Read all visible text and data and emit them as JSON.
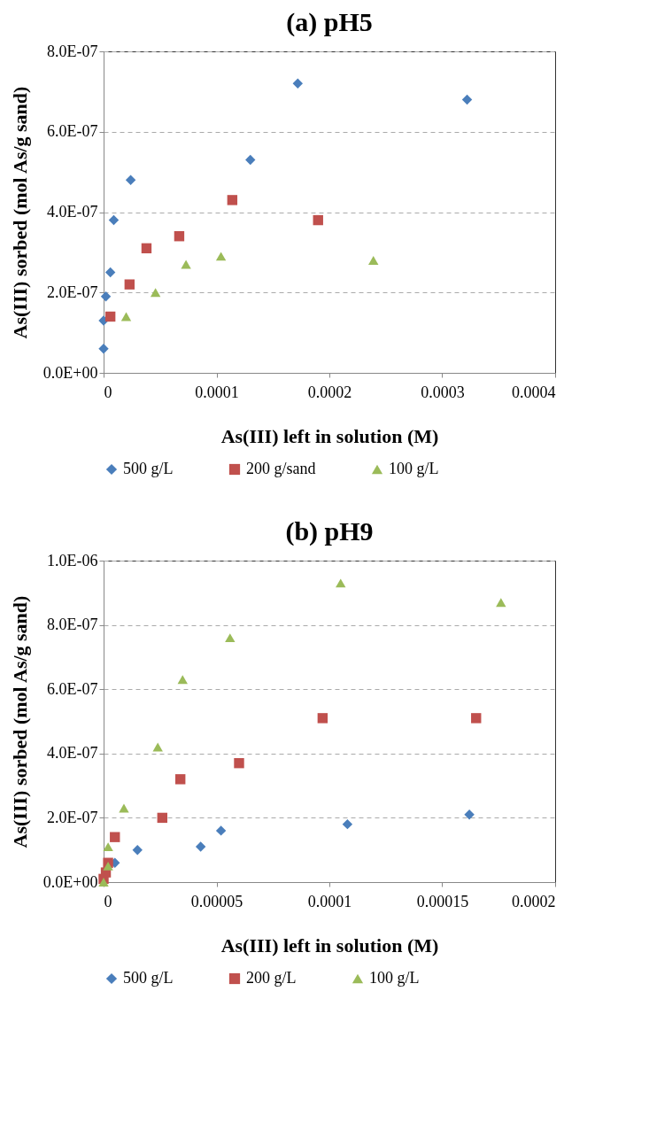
{
  "chart_data": [
    {
      "type": "scatter",
      "title": "(a) pH5",
      "xlabel": "As(III) left in solution (M)",
      "ylabel": "As(III) sorbed (mol As/g sand)",
      "grid": "y",
      "legend": "bottom",
      "xlim": [
        0,
        0.0004
      ],
      "xticks": [
        {
          "value": 0,
          "label": "0"
        },
        {
          "value": 0.0001,
          "label": "0.0001"
        },
        {
          "value": 0.0002,
          "label": "0.0002"
        },
        {
          "value": 0.0003,
          "label": "0.0003"
        },
        {
          "value": 0.0004,
          "label": "0.0004"
        }
      ],
      "ylim": [
        0,
        8e-07
      ],
      "yticks": [
        {
          "value": 0,
          "label": "0.0E+00"
        },
        {
          "value": 2e-07,
          "label": "2.0E-07"
        },
        {
          "value": 4e-07,
          "label": "4.0E-07"
        },
        {
          "value": 6e-07,
          "label": "6.0E-07"
        },
        {
          "value": 8e-07,
          "label": "8.0E-07"
        }
      ],
      "series": [
        {
          "name": "500 g/L",
          "color": "#4a7ebb",
          "marker": "diamond",
          "x": [
            0,
            0,
            2e-06,
            6e-06,
            9e-06,
            2.4e-05,
            0.00013,
            0.000172,
            0.000322
          ],
          "values": [
            6e-08,
            1.3e-07,
            1.9e-07,
            2.5e-07,
            3.8e-07,
            4.8e-07,
            5.3e-07,
            7.2e-07,
            6.8e-07
          ]
        },
        {
          "name": "200 g/sand",
          "color": "#c0504d",
          "marker": "square",
          "x": [
            6e-06,
            2.3e-05,
            3.8e-05,
            6.7e-05,
            0.000114,
            0.00019
          ],
          "values": [
            1.4e-07,
            2.2e-07,
            3.1e-07,
            3.4e-07,
            4.3e-07,
            3.8e-07
          ]
        },
        {
          "name": "100 g/L",
          "color": "#9bbb59",
          "marker": "triangle",
          "x": [
            2e-05,
            4.6e-05,
            7.3e-05,
            0.000104,
            0.000239
          ],
          "values": [
            1.4e-07,
            2e-07,
            2.7e-07,
            2.9e-07,
            2.8e-07
          ]
        }
      ]
    },
    {
      "type": "scatter",
      "title": "(b) pH9",
      "xlabel": "As(III) left in solution (M)",
      "ylabel": "As(III) sorbed (mol As/g sand)",
      "grid": "y",
      "legend": "bottom",
      "xlim": [
        0,
        0.0002
      ],
      "xticks": [
        {
          "value": 0,
          "label": "0"
        },
        {
          "value": 5e-05,
          "label": "0.00005"
        },
        {
          "value": 0.0001,
          "label": "0.0001"
        },
        {
          "value": 0.00015,
          "label": "0.00015"
        },
        {
          "value": 0.0002,
          "label": "0.0002"
        }
      ],
      "ylim": [
        0,
        1e-06
      ],
      "yticks": [
        {
          "value": 0,
          "label": "0.0E+00"
        },
        {
          "value": 2e-07,
          "label": "2.0E-07"
        },
        {
          "value": 4e-07,
          "label": "4.0E-07"
        },
        {
          "value": 6e-07,
          "label": "6.0E-07"
        },
        {
          "value": 8e-07,
          "label": "8.0E-07"
        },
        {
          "value": 1e-06,
          "label": "1.0E-06"
        }
      ],
      "series": [
        {
          "name": "500 g/L",
          "color": "#4a7ebb",
          "marker": "diamond",
          "x": [
            5e-06,
            1.5e-05,
            4.3e-05,
            5.2e-05,
            0.000108,
            0.000162
          ],
          "values": [
            6e-08,
            1e-07,
            1.1e-07,
            1.6e-07,
            1.8e-07,
            2.1e-07
          ]
        },
        {
          "name": "200 g/L",
          "color": "#c0504d",
          "marker": "square",
          "x": [
            0,
            1e-06,
            2e-06,
            5e-06,
            2.6e-05,
            3.4e-05,
            6e-05,
            9.7e-05,
            0.000165
          ],
          "values": [
            1e-08,
            3e-08,
            6e-08,
            1.4e-07,
            2e-07,
            3.2e-07,
            3.7e-07,
            5.1e-07,
            5.1e-07
          ]
        },
        {
          "name": "100 g/L",
          "color": "#9bbb59",
          "marker": "triangle",
          "x": [
            0,
            2e-06,
            2e-06,
            9e-06,
            2.4e-05,
            3.5e-05,
            5.6e-05,
            0.000105,
            0.000176
          ],
          "values": [
            0,
            5e-08,
            1.1e-07,
            2.3e-07,
            4.2e-07,
            6.3e-07,
            7.6e-07,
            9.3e-07,
            8.7e-07
          ]
        }
      ]
    }
  ]
}
